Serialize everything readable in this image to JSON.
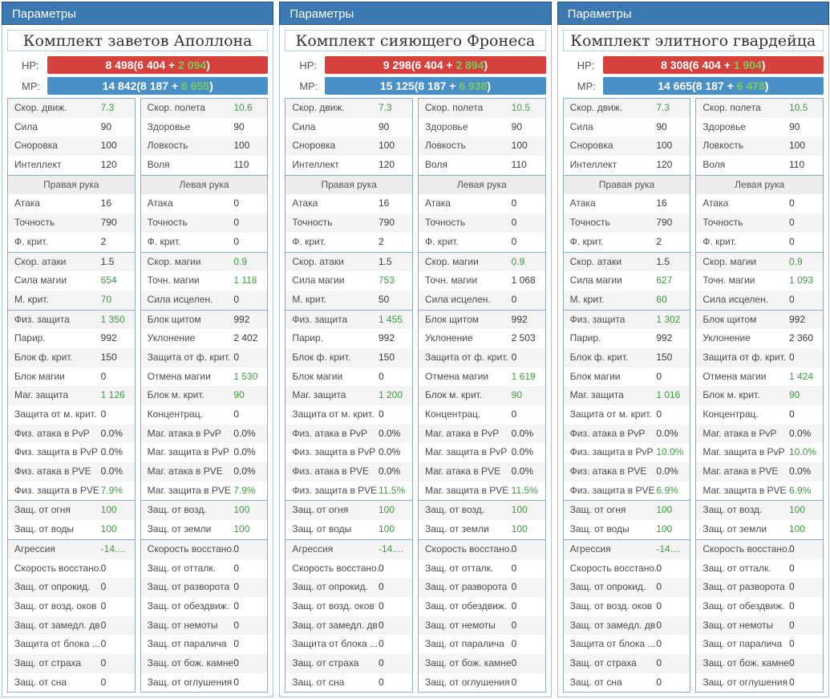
{
  "colors": {
    "header_bg": "#3c78b1",
    "hp_bar": "#d6413c",
    "mp_bar": "#4a90c8",
    "bar_bonus_green": "#79c95f",
    "value_green": "#3c9e3c",
    "section_border": "#8aadca"
  },
  "panels": [
    {
      "header": "Параметры",
      "title": "Комплект заветов Аполлона",
      "hp": {
        "label": "HP:",
        "total": "8 498",
        "base": "6 404",
        "bonus": "2 094"
      },
      "mp": {
        "label": "MP:",
        "total": "14 842",
        "base": "8 187",
        "bonus": "6 655"
      },
      "sections": [
        {
          "rows": [
            [
              "Скор. движ.",
              "7.3",
              true,
              "Скор. полета",
              "10.6",
              true
            ],
            [
              "Сила",
              "90",
              false,
              "Здоровье",
              "90",
              false
            ],
            [
              "Сноровка",
              "100",
              false,
              "Ловкость",
              "100",
              false
            ],
            [
              "Интеллект",
              "120",
              false,
              "Воля",
              "110",
              false
            ]
          ]
        },
        {
          "headers": [
            "Правая рука",
            "Левая рука"
          ],
          "rows": [
            [
              "Атака",
              "16",
              false,
              "Атака",
              "0",
              false
            ],
            [
              "Точность",
              "790",
              false,
              "Точность",
              "0",
              false
            ],
            [
              "Ф. крит.",
              "2",
              false,
              "Ф. крит.",
              "0",
              false
            ]
          ]
        },
        {
          "rows": [
            [
              "Скор. атаки",
              "1.5",
              false,
              "Скор. магии",
              "0.9",
              true
            ],
            [
              "Сила магии",
              "654",
              true,
              "Точн. магии",
              "1 118",
              true
            ],
            [
              "М. крит.",
              "70",
              true,
              "Сила исцелен.",
              "0",
              false
            ]
          ]
        },
        {
          "rows": [
            [
              "Физ. защита",
              "1 350",
              true,
              "Блок щитом",
              "992",
              false
            ],
            [
              "Парир.",
              "992",
              false,
              "Уклонение",
              "2 402",
              false
            ],
            [
              "Блок ф. крит.",
              "150",
              false,
              "Защита от ф. крит.",
              "0",
              false
            ],
            [
              "Блок магии",
              "0",
              false,
              "Отмена магии",
              "1 530",
              true
            ],
            [
              "Маг. защита",
              "1 126",
              true,
              "Блок м. крит.",
              "90",
              true
            ],
            [
              "Защита от м. крит.",
              "0",
              false,
              "Концентрац.",
              "0",
              false
            ],
            [
              "Физ. атака в PvP",
              "0.0%",
              false,
              "Маг. атака в PvP",
              "0.0%",
              false
            ],
            [
              "Физ. защита в PvP",
              "0.0%",
              false,
              "Маг. защита в PvP",
              "0.0%",
              false
            ],
            [
              "Физ. атака в PVE",
              "0.0%",
              false,
              "Маг. атака в PVE",
              "0.0%",
              false
            ],
            [
              "Физ. защита в PVE",
              "7.9%",
              true,
              "Маг. защита в PVE",
              "7.9%",
              true
            ]
          ]
        },
        {
          "rows": [
            [
              "Защ. от огня",
              "100",
              true,
              "Защ. от возд.",
              "100",
              true
            ],
            [
              "Защ. от воды",
              "100",
              true,
              "Защ. от земли",
              "100",
              true
            ]
          ]
        },
        {
          "rows": [
            [
              "Агрессия",
              "-14....",
              true,
              "Скорость восстано...",
              "0",
              false
            ],
            [
              "Скорость восстано...",
              "0",
              false,
              "Защ. от отталк.",
              "0",
              false
            ],
            [
              "Защ. от опрокид.",
              "0",
              false,
              "Защ. от разворота",
              "0",
              false
            ],
            [
              "Защ. от возд. оков",
              "0",
              false,
              "Защ. от обездвиж.",
              "0",
              false
            ],
            [
              "Защ. от замедл. дв...",
              "0",
              false,
              "Защ. от немоты",
              "0",
              false
            ],
            [
              "Защита от блока ...",
              "0",
              false,
              "Защ. от паралича",
              "0",
              false
            ],
            [
              "Защ. от страха",
              "0",
              false,
              "Защ. от бож. камней",
              "0",
              false
            ],
            [
              "Защ. от сна",
              "0",
              false,
              "Защ. от оглушения",
              "0",
              false
            ]
          ]
        }
      ]
    },
    {
      "header": "Параметры",
      "title": "Комплект сияющего Фронеса",
      "hp": {
        "label": "HP:",
        "total": "9 298",
        "base": "6 404",
        "bonus": "2 894"
      },
      "mp": {
        "label": "MP:",
        "total": "15 125",
        "base": "8 187",
        "bonus": "6 938"
      },
      "sections": [
        {
          "rows": [
            [
              "Скор. движ.",
              "7.3",
              true,
              "Скор. полета",
              "10.5",
              true
            ],
            [
              "Сила",
              "90",
              false,
              "Здоровье",
              "90",
              false
            ],
            [
              "Сноровка",
              "100",
              false,
              "Ловкость",
              "100",
              false
            ],
            [
              "Интеллект",
              "120",
              false,
              "Воля",
              "110",
              false
            ]
          ]
        },
        {
          "headers": [
            "Правая рука",
            "Левая рука"
          ],
          "rows": [
            [
              "Атака",
              "16",
              false,
              "Атака",
              "0",
              false
            ],
            [
              "Точность",
              "790",
              false,
              "Точность",
              "0",
              false
            ],
            [
              "Ф. крит.",
              "2",
              false,
              "Ф. крит.",
              "0",
              false
            ]
          ]
        },
        {
          "rows": [
            [
              "Скор. атаки",
              "1.5",
              false,
              "Скор. магии",
              "0.9",
              true
            ],
            [
              "Сила магии",
              "753",
              true,
              "Точн. магии",
              "1 068",
              false
            ],
            [
              "М. крит.",
              "50",
              false,
              "Сила исцелен.",
              "0",
              false
            ]
          ]
        },
        {
          "rows": [
            [
              "Физ. защита",
              "1 455",
              true,
              "Блок щитом",
              "992",
              false
            ],
            [
              "Парир.",
              "992",
              false,
              "Уклонение",
              "2 503",
              false
            ],
            [
              "Блок ф. крит.",
              "150",
              false,
              "Защита от ф. крит.",
              "0",
              false
            ],
            [
              "Блок магии",
              "0",
              false,
              "Отмена магии",
              "1 619",
              true
            ],
            [
              "Маг. защита",
              "1 200",
              true,
              "Блок м. крит.",
              "90",
              true
            ],
            [
              "Защита от м. крит.",
              "0",
              false,
              "Концентрац.",
              "0",
              false
            ],
            [
              "Физ. атака в PvP",
              "0.0%",
              false,
              "Маг. атака в PvP",
              "0.0%",
              false
            ],
            [
              "Физ. защита в PvP",
              "0.0%",
              false,
              "Маг. защита в PvP",
              "0.0%",
              false
            ],
            [
              "Физ. атака в PVE",
              "0.0%",
              false,
              "Маг. атака в PVE",
              "0.0%",
              false
            ],
            [
              "Физ. защита в PVE",
              "11.5%",
              true,
              "Маг. защита в PVE",
              "11.5%",
              true
            ]
          ]
        },
        {
          "rows": [
            [
              "Защ. от огня",
              "100",
              true,
              "Защ. от возд.",
              "100",
              true
            ],
            [
              "Защ. от воды",
              "100",
              true,
              "Защ. от земли",
              "100",
              true
            ]
          ]
        },
        {
          "rows": [
            [
              "Агрессия",
              "-14....",
              true,
              "Скорость восстано...",
              "0",
              false
            ],
            [
              "Скорость восстано...",
              "0",
              false,
              "Защ. от отталк.",
              "0",
              false
            ],
            [
              "Защ. от опрокид.",
              "0",
              false,
              "Защ. от разворота",
              "0",
              false
            ],
            [
              "Защ. от возд. оков",
              "0",
              false,
              "Защ. от обездвиж.",
              "0",
              false
            ],
            [
              "Защ. от замедл. дв...",
              "0",
              false,
              "Защ. от немоты",
              "0",
              false
            ],
            [
              "Защита от блока ...",
              "0",
              false,
              "Защ. от паралича",
              "0",
              false
            ],
            [
              "Защ. от страха",
              "0",
              false,
              "Защ. от бож. камней",
              "0",
              false
            ],
            [
              "Защ. от сна",
              "0",
              false,
              "Защ. от оглушения",
              "0",
              false
            ]
          ]
        }
      ]
    },
    {
      "header": "Параметры",
      "title": "Комплект элитного гвардейца",
      "hp": {
        "label": "HP:",
        "total": "8 308",
        "base": "6 404",
        "bonus": "1 904"
      },
      "mp": {
        "label": "MP:",
        "total": "14 665",
        "base": "8 187",
        "bonus": "6 478"
      },
      "sections": [
        {
          "rows": [
            [
              "Скор. движ.",
              "7.3",
              true,
              "Скор. полета",
              "10.5",
              true
            ],
            [
              "Сила",
              "90",
              false,
              "Здоровье",
              "90",
              false
            ],
            [
              "Сноровка",
              "100",
              false,
              "Ловкость",
              "100",
              false
            ],
            [
              "Интеллект",
              "120",
              false,
              "Воля",
              "110",
              false
            ]
          ]
        },
        {
          "headers": [
            "Правая рука",
            "Левая рука"
          ],
          "rows": [
            [
              "Атака",
              "16",
              false,
              "Атака",
              "0",
              false
            ],
            [
              "Точность",
              "790",
              false,
              "Точность",
              "0",
              false
            ],
            [
              "Ф. крит.",
              "2",
              false,
              "Ф. крит.",
              "0",
              false
            ]
          ]
        },
        {
          "rows": [
            [
              "Скор. атаки",
              "1.5",
              false,
              "Скор. магии",
              "0.9",
              true
            ],
            [
              "Сила магии",
              "627",
              true,
              "Точн. магии",
              "1 093",
              true
            ],
            [
              "М. крит.",
              "60",
              true,
              "Сила исцелен.",
              "0",
              false
            ]
          ]
        },
        {
          "rows": [
            [
              "Физ. защита",
              "1 302",
              true,
              "Блок щитом",
              "992",
              false
            ],
            [
              "Парир.",
              "992",
              false,
              "Уклонение",
              "2 360",
              false
            ],
            [
              "Блок ф. крит.",
              "150",
              false,
              "Защита от ф. крит.",
              "0",
              false
            ],
            [
              "Блок магии",
              "0",
              false,
              "Отмена магии",
              "1 424",
              true
            ],
            [
              "Маг. защита",
              "1 016",
              true,
              "Блок м. крит.",
              "90",
              true
            ],
            [
              "Защита от м. крит.",
              "0",
              false,
              "Концентрац.",
              "0",
              false
            ],
            [
              "Физ. атака в PvP",
              "0.0%",
              false,
              "Маг. атака в PvP",
              "0.0%",
              false
            ],
            [
              "Физ. защита в PvP",
              "10.0%",
              true,
              "Маг. защита в PvP",
              "10.0%",
              true
            ],
            [
              "Физ. атака в PVE",
              "0.0%",
              false,
              "Маг. атака в PVE",
              "0.0%",
              false
            ],
            [
              "Физ. защита в PVE",
              "6.9%",
              true,
              "Маг. защита в PVE",
              "6.9%",
              true
            ]
          ]
        },
        {
          "rows": [
            [
              "Защ. от огня",
              "100",
              true,
              "Защ. от возд.",
              "100",
              true
            ],
            [
              "Защ. от воды",
              "100",
              true,
              "Защ. от земли",
              "100",
              true
            ]
          ]
        },
        {
          "rows": [
            [
              "Агрессия",
              "-14....",
              true,
              "Скорость восстано...",
              "0",
              false
            ],
            [
              "Скорость восстано...",
              "0",
              false,
              "Защ. от отталк.",
              "0",
              false
            ],
            [
              "Защ. от опрокид.",
              "0",
              false,
              "Защ. от разворота",
              "0",
              false
            ],
            [
              "Защ. от возд. оков",
              "0",
              false,
              "Защ. от обездвиж.",
              "0",
              false
            ],
            [
              "Защ. от замедл. дв...",
              "0",
              false,
              "Защ. от немоты",
              "0",
              false
            ],
            [
              "Защита от блока ...",
              "0",
              false,
              "Защ. от паралича",
              "0",
              false
            ],
            [
              "Защ. от страха",
              "0",
              false,
              "Защ. от бож. камней",
              "0",
              false
            ],
            [
              "Защ. от сна",
              "0",
              false,
              "Защ. от оглушения",
              "0",
              false
            ]
          ]
        }
      ]
    }
  ]
}
